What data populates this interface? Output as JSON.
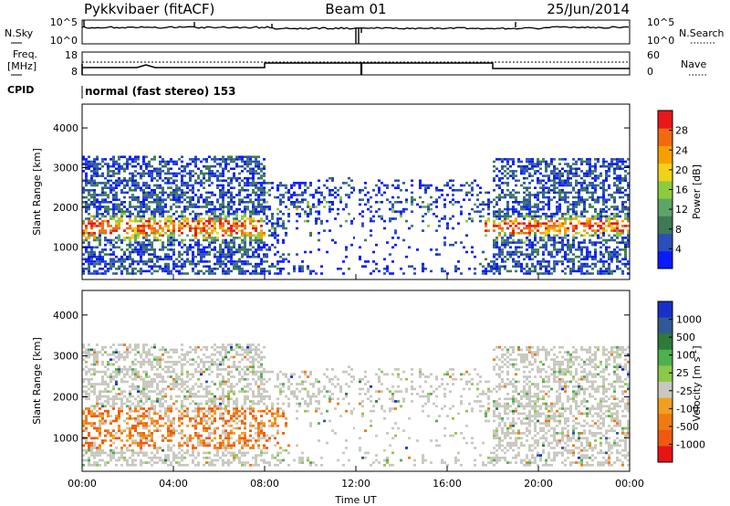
{
  "header": {
    "station": "Pykkvibaer (fitACF)",
    "beam": "Beam 01",
    "date": "25/Jun/2014"
  },
  "noise_panel": {
    "left_label": "N.Sky",
    "right_label": "N.Search",
    "left_ticks": [
      "10^5",
      "10^0"
    ],
    "right_ticks": [
      "10^5",
      "10^0"
    ]
  },
  "freq_panel": {
    "left_label_1": "Freq.",
    "left_label_2": "[MHz]",
    "right_label": "Nave",
    "left_ticks": [
      "18",
      "8"
    ],
    "right_ticks": [
      "60",
      "0"
    ]
  },
  "cpid_panel": {
    "label": "CPID",
    "mode": "normal (fast stereo) 153"
  },
  "colors": {
    "power_scale": [
      "#0a1aff",
      "#2a4fb8",
      "#3f7a55",
      "#5da566",
      "#8ccc3c",
      "#f0d21a",
      "#f5a000",
      "#f06a10",
      "#e81818"
    ],
    "velocity_scale": [
      "#1a2fc8",
      "#2f5a96",
      "#2f7a3a",
      "#4fb04f",
      "#8cc84a",
      "#c8c8c0",
      "#f0a020",
      "#f07a10",
      "#ee5a10",
      "#e81414"
    ]
  },
  "chart_data": [
    {
      "type": "heatmap",
      "title": "",
      "ylabel": "Slant Range [km]",
      "xlabel": "",
      "x_range": [
        "00:00",
        "00:00"
      ],
      "ylim": [
        180,
        4600
      ],
      "y_ticks": [
        "1000",
        "2000",
        "3000",
        "4000"
      ],
      "colorbar": {
        "label": "Power [dB]",
        "range": [
          0,
          32
        ],
        "ticks": [
          "4",
          "8",
          "12",
          "16",
          "20",
          "24",
          "28"
        ]
      }
    },
    {
      "type": "heatmap",
      "title": "",
      "ylabel": "Slant Range [km]",
      "xlabel": "Time UT",
      "x_range": [
        "00:00",
        "00:00"
      ],
      "ylim": [
        180,
        4600
      ],
      "x_ticks": [
        "00:00",
        "04:00",
        "08:00",
        "12:00",
        "16:00",
        "20:00",
        "00:00"
      ],
      "y_ticks": [
        "1000",
        "2000",
        "3000",
        "4000"
      ],
      "colorbar": {
        "label": "Velocity [m s^-1]",
        "ticks": [
          "1000",
          "500",
          "100",
          "25",
          "-25",
          "-100",
          "-500",
          "-1000"
        ]
      }
    }
  ]
}
